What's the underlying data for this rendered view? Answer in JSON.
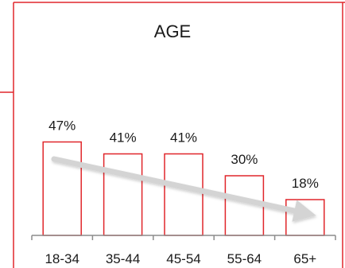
{
  "chart_data": {
    "type": "bar",
    "title": "AGE",
    "categories": [
      "18-34",
      "35-44",
      "45-54",
      "55-64",
      "65+"
    ],
    "values": [
      47,
      41,
      41,
      30,
      18
    ],
    "value_labels": [
      "47%",
      "41%",
      "41%",
      "30%",
      "18%"
    ],
    "unit": "%",
    "ylim": [
      0,
      60
    ],
    "grid": false,
    "legend": "none",
    "trend_arrow": "downward",
    "colors": {
      "bar_stroke": "#e0262b",
      "bar_fill": "#ffffff",
      "frame": "#e0262b",
      "axis": "#8c8c8c",
      "trend_arrow": "#d4d4d4"
    }
  }
}
